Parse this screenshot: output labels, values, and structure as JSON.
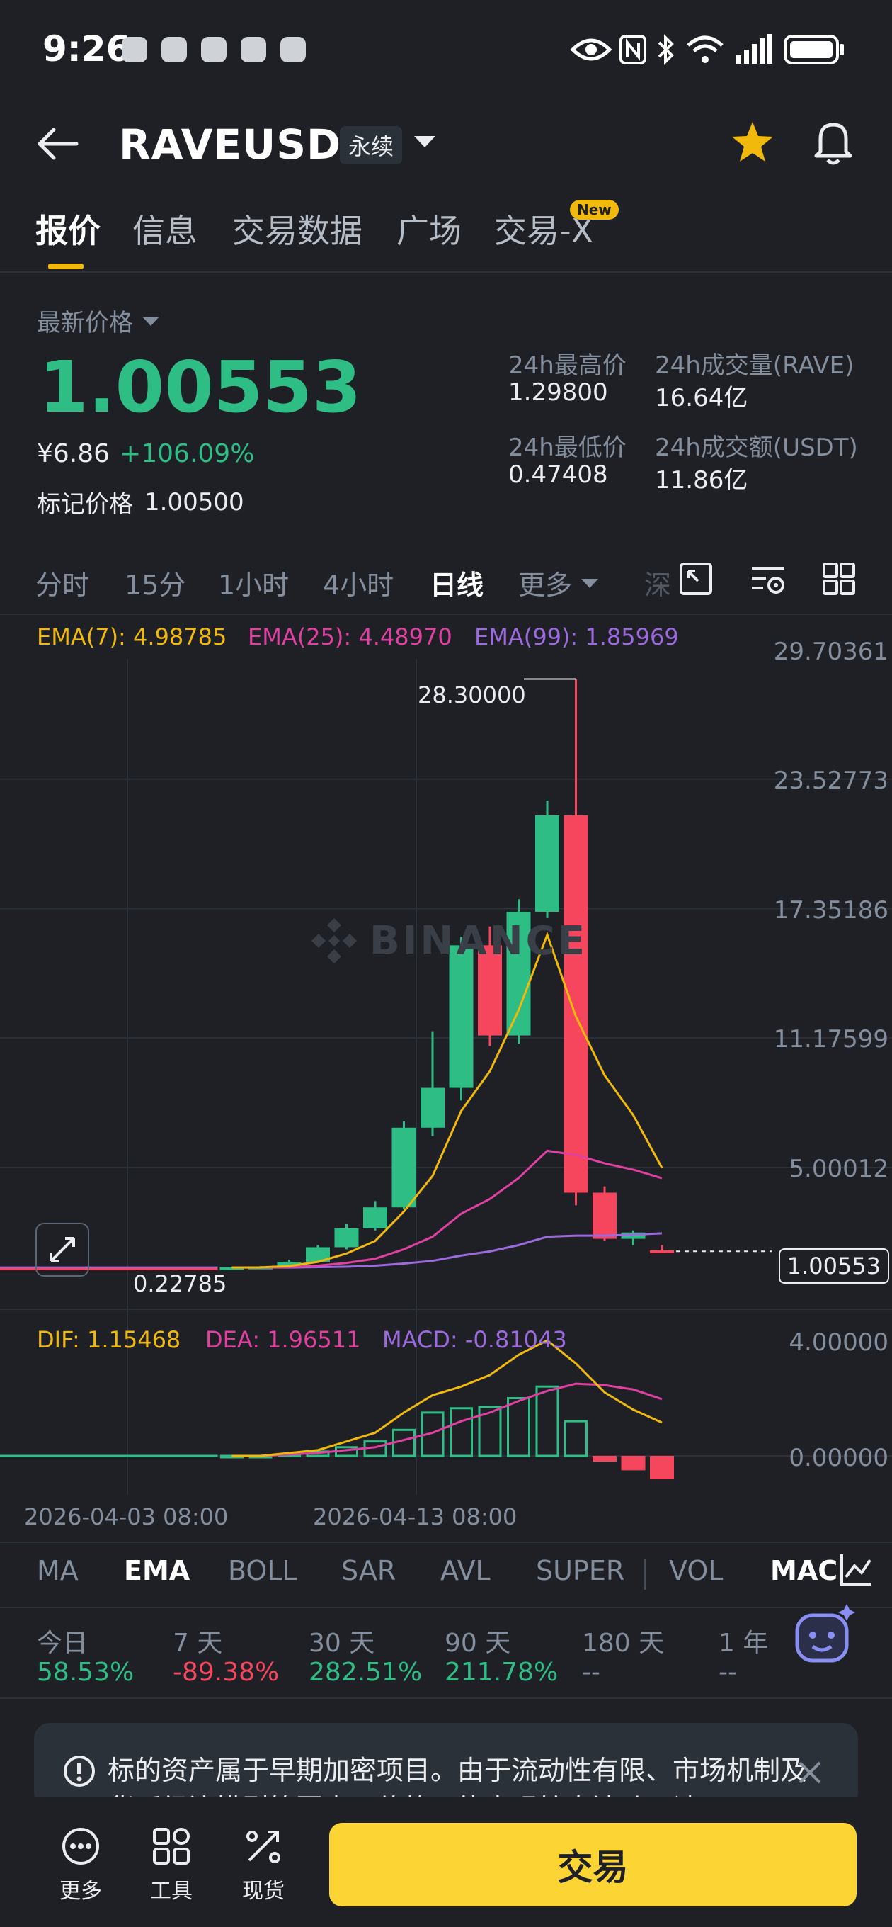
{
  "status_bar": {
    "time": "9:26"
  },
  "header": {
    "symbol": "RAVEUSDT",
    "contract_type": "永续"
  },
  "tabs": [
    {
      "label": "报价"
    },
    {
      "label": "信息"
    },
    {
      "label": "交易数据"
    },
    {
      "label": "广场"
    },
    {
      "label": "交易-X"
    }
  ],
  "new_badge": "New",
  "price_section": {
    "label": "最新价格",
    "last_price": "1.00553",
    "cny_price": "¥6.86",
    "change_pct": "+106.09%",
    "mark_label": "标记价格",
    "mark_price": "1.00500",
    "high_label": "24h最高价",
    "high_value": "1.29800",
    "low_label": "24h最低价",
    "low_value": "0.47408",
    "vol_label": "24h成交量(RAVE)",
    "vol_value": "16.64亿",
    "turnover_label": "24h成交额(USDT)",
    "turnover_value": "11.86亿"
  },
  "timeframes": [
    "分时",
    "15分",
    "1小时",
    "4小时",
    "日线",
    "更多",
    "深"
  ],
  "active_timeframe": "日线",
  "ema_legend": {
    "ema7": "EMA(7): 4.98785",
    "ema25": "EMA(25): 4.48970",
    "ema99": "EMA(99): 1.85969"
  },
  "price_axis": [
    "29.70361",
    "23.52773",
    "17.35186",
    "11.17599",
    "5.00012"
  ],
  "current_price_tag": "1.00553",
  "annotations": {
    "high": "28.30000",
    "low": "0.22785"
  },
  "watermark": "BINANCE",
  "macd_legend": {
    "dif": "DIF: 1.15468",
    "dea": "DEA: 1.96511",
    "macd": "MACD: -0.81043"
  },
  "macd_axis": [
    "4.00000",
    "0.00000"
  ],
  "dates": [
    "2026-04-03 08:00",
    "2026-04-13 08:00"
  ],
  "indicators": [
    "MA",
    "EMA",
    "BOLL",
    "SAR",
    "AVL",
    "SUPER",
    "VOL",
    "MACD"
  ],
  "active_indicator": "EMA",
  "performance": [
    {
      "label": "今日",
      "value": "58.53%"
    },
    {
      "label": "7 天",
      "value": "-89.38%"
    },
    {
      "label": "30 天",
      "value": "282.51%"
    },
    {
      "label": "90 天",
      "value": "211.78%"
    },
    {
      "label": "180 天",
      "value": "--"
    },
    {
      "label": "1 年",
      "value": "--"
    }
  ],
  "notice_text": "标的资产属于早期加密项目。由于流动性有限、市场机制及货币经济模型等因素，价格可能出现较大波动，请",
  "bottom_nav": [
    {
      "label": "更多"
    },
    {
      "label": "工具"
    },
    {
      "label": "现货"
    }
  ],
  "trade_button": "交易",
  "colors": {
    "up": "#2ebd85",
    "down": "#f6465d",
    "ema7": "#f0b90b",
    "ema25": "#e040a0",
    "ema99": "#9c6ade",
    "accent": "#fcd535"
  },
  "chart_data": {
    "type": "candlestick",
    "ylim": [
      0,
      29.70361
    ],
    "candles": [
      {
        "o": 0.23,
        "h": 0.26,
        "l": 0.22,
        "c": 0.25
      },
      {
        "o": 0.25,
        "h": 0.3,
        "l": 0.23,
        "c": 0.28
      },
      {
        "o": 0.28,
        "h": 0.6,
        "l": 0.27,
        "c": 0.5
      },
      {
        "o": 0.5,
        "h": 1.3,
        "l": 0.45,
        "c": 1.2
      },
      {
        "o": 1.2,
        "h": 2.3,
        "l": 1.1,
        "c": 2.1
      },
      {
        "o": 2.1,
        "h": 3.4,
        "l": 2.0,
        "c": 3.1
      },
      {
        "o": 3.1,
        "h": 7.2,
        "l": 3.0,
        "c": 6.9
      },
      {
        "o": 6.9,
        "h": 11.5,
        "l": 6.5,
        "c": 8.8
      },
      {
        "o": 8.8,
        "h": 16.0,
        "l": 8.2,
        "c": 15.6
      },
      {
        "o": 15.6,
        "h": 16.5,
        "l": 10.8,
        "c": 11.3
      },
      {
        "o": 11.3,
        "h": 17.8,
        "l": 10.9,
        "c": 17.2
      },
      {
        "o": 17.2,
        "h": 22.5,
        "l": 16.9,
        "c": 21.8
      },
      {
        "o": 21.8,
        "h": 28.3,
        "l": 3.2,
        "c": 3.8
      },
      {
        "o": 3.8,
        "h": 4.1,
        "l": 1.5,
        "c": 1.6
      },
      {
        "o": 1.6,
        "h": 2.0,
        "l": 1.3,
        "c": 1.9
      },
      {
        "o": 1.05,
        "h": 1.3,
        "l": 0.98,
        "c": 1.00553
      }
    ],
    "ema7": [
      0.23,
      0.24,
      0.3,
      0.5,
      0.9,
      1.5,
      2.9,
      4.6,
      7.7,
      9.6,
      12.5,
      16.1,
      12.2,
      9.4,
      7.5,
      4.98785
    ],
    "ema25": [
      0.23,
      0.23,
      0.25,
      0.32,
      0.45,
      0.65,
      1.1,
      1.7,
      2.8,
      3.5,
      4.5,
      5.8,
      5.6,
      5.2,
      4.9,
      4.4897
    ],
    "ema99": [
      0.23,
      0.23,
      0.23,
      0.25,
      0.27,
      0.32,
      0.42,
      0.55,
      0.8,
      1.0,
      1.3,
      1.7,
      1.75,
      1.75,
      1.8,
      1.85969
    ],
    "macd_hist": [
      0.0,
      0.0,
      0.05,
      0.15,
      0.3,
      0.5,
      0.9,
      1.5,
      1.65,
      1.7,
      2.0,
      2.4,
      1.2,
      -0.2,
      -0.5,
      -0.81043
    ],
    "dif": [
      0.0,
      0.0,
      0.1,
      0.2,
      0.5,
      0.8,
      1.5,
      2.1,
      2.4,
      2.8,
      3.5,
      4.0,
      3.2,
      2.2,
      1.6,
      1.15468
    ],
    "dea": [
      0.0,
      0.0,
      0.05,
      0.1,
      0.2,
      0.3,
      0.55,
      0.8,
      1.2,
      1.5,
      1.9,
      2.25,
      2.5,
      2.45,
      2.3,
      1.96511
    ],
    "macd_ylim": [
      -1.0,
      4.0
    ]
  }
}
